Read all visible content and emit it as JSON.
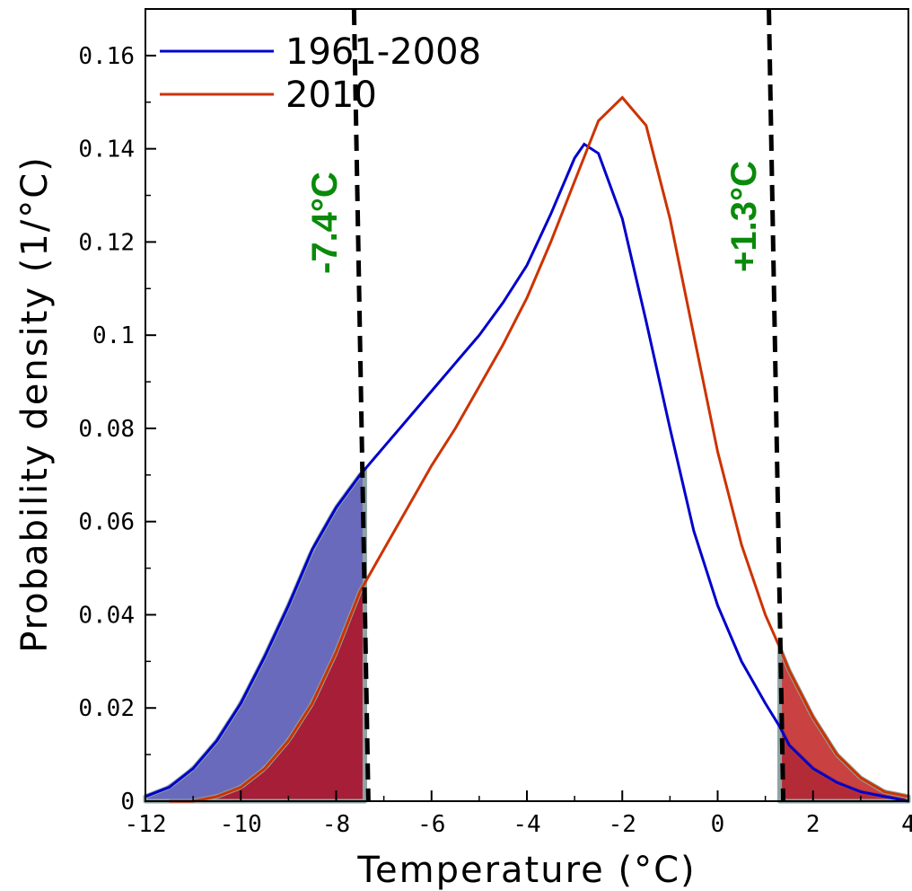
{
  "chart_data": {
    "type": "line",
    "title": "",
    "xlabel": "Temperature (°C)",
    "ylabel": "Probability density (1/°C)",
    "xlim": [
      -12,
      4
    ],
    "ylim": [
      0,
      0.17
    ],
    "xticks": [
      -12,
      -10,
      -8,
      -6,
      -4,
      -2,
      0,
      2,
      4
    ],
    "xtick_labels": [
      "-12",
      "-10",
      "-8",
      "-6",
      "-4",
      "-2",
      "0",
      "2",
      "4"
    ],
    "yticks": [
      0,
      0.02,
      0.04,
      0.06,
      0.08,
      0.1,
      0.12,
      0.14,
      0.16
    ],
    "ytick_labels": [
      "0",
      "0.02",
      "0.04",
      "0.06",
      "0.08",
      "0.1",
      "0.12",
      "0.14",
      "0.16"
    ],
    "grid": false,
    "legend_position": "top-left",
    "series": [
      {
        "name": "1961-2008",
        "color": "#0000cc",
        "x": [
          -12,
          -11.5,
          -11,
          -10.5,
          -10,
          -9.5,
          -9,
          -8.5,
          -8,
          -7.5,
          -7,
          -6.5,
          -6,
          -5.5,
          -5,
          -4.5,
          -4,
          -3.5,
          -3,
          -2.8,
          -2.5,
          -2,
          -1.5,
          -1,
          -0.5,
          0,
          0.5,
          1,
          1.3,
          1.5,
          2,
          2.5,
          3,
          3.5,
          4
        ],
        "y": [
          0.001,
          0.003,
          0.007,
          0.013,
          0.021,
          0.031,
          0.042,
          0.054,
          0.063,
          0.07,
          0.076,
          0.082,
          0.088,
          0.094,
          0.1,
          0.107,
          0.115,
          0.126,
          0.138,
          0.141,
          0.139,
          0.125,
          0.103,
          0.08,
          0.058,
          0.042,
          0.03,
          0.021,
          0.016,
          0.012,
          0.007,
          0.004,
          0.002,
          0.001,
          0.0
        ]
      },
      {
        "name": "2010",
        "color": "#cc3300",
        "x": [
          -11.5,
          -11,
          -10.5,
          -10,
          -9.5,
          -9,
          -8.5,
          -8,
          -7.5,
          -7,
          -6.5,
          -6,
          -5.5,
          -5,
          -4.5,
          -4,
          -3.5,
          -3,
          -2.5,
          -2,
          -1.5,
          -1,
          -0.5,
          0,
          0.5,
          1,
          1.3,
          1.5,
          2,
          2.5,
          3,
          3.5,
          4
        ],
        "y": [
          0.0,
          0.0,
          0.001,
          0.003,
          0.007,
          0.013,
          0.021,
          0.032,
          0.045,
          0.054,
          0.063,
          0.072,
          0.08,
          0.089,
          0.098,
          0.108,
          0.12,
          0.133,
          0.146,
          0.151,
          0.145,
          0.125,
          0.1,
          0.075,
          0.055,
          0.04,
          0.033,
          0.028,
          0.018,
          0.01,
          0.005,
          0.002,
          0.001
        ]
      }
    ],
    "thresholds": [
      {
        "x": -7.4,
        "label": "-7.4°C",
        "style": "dashed",
        "color": "#000000"
      },
      {
        "x": 1.3,
        "label": "+1.3°C",
        "style": "dashed",
        "color": "#000000"
      }
    ],
    "shaded_tails": [
      {
        "series": "1961-2008",
        "region": "below -7.4",
        "fill": "#5050b0"
      },
      {
        "series": "2010",
        "region": "below -7.4",
        "fill": "#b01020"
      },
      {
        "series": "1961-2008",
        "region": "above 1.3",
        "fill": "#5050b0"
      },
      {
        "series": "2010",
        "region": "above 1.3",
        "fill": "#c02020"
      }
    ],
    "annotation_color": "#0a8a0a",
    "tail_outline_color": "#8fa3a3"
  }
}
